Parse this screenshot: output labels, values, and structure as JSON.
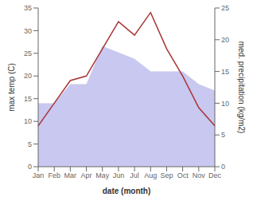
{
  "chart_data": {
    "type": "line",
    "categories": [
      "Jan",
      "Feb",
      "Mar",
      "Apr",
      "May",
      "Jun",
      "Jul",
      "Aug",
      "Sep",
      "Oct",
      "Nov",
      "Dec"
    ],
    "series": [
      {
        "type": "area",
        "axis": "y2",
        "color": "#c8c8f0",
        "values": [
          10,
          10,
          13,
          13,
          19,
          18,
          17,
          15,
          15,
          15,
          13,
          12
        ]
      },
      {
        "type": "line",
        "color": "#aa3333",
        "values": [
          9,
          14,
          19,
          20,
          26,
          32,
          29,
          34,
          26,
          20,
          13,
          9
        ]
      }
    ],
    "xlabel": "date (month)",
    "ylabel": "max temp (C)",
    "y2label": "med. precipitation (kg/m2)",
    "ylim": [
      0,
      35
    ],
    "yticks": [
      0,
      5,
      10,
      15,
      20,
      25,
      30,
      35
    ],
    "y2lim": [
      0,
      25
    ],
    "y2ticks": [
      0,
      5,
      10,
      15,
      20,
      25
    ],
    "grid": false
  }
}
